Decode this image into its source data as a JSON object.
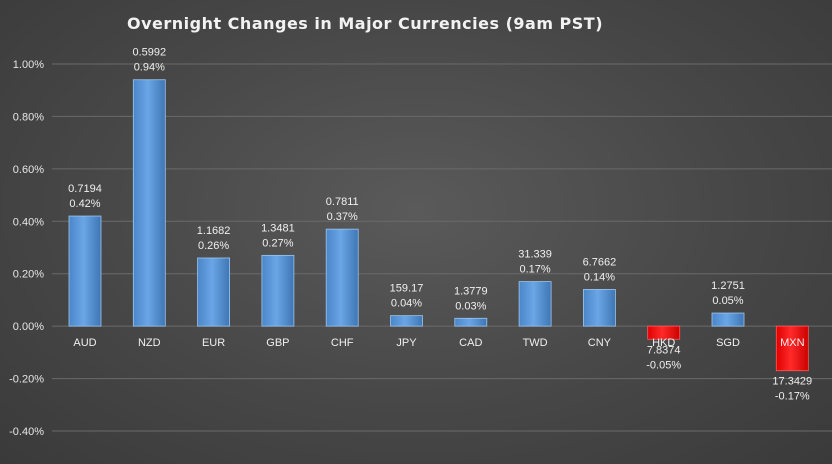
{
  "chart_data": {
    "type": "bar",
    "title": "Overnight Changes in Major Currencies (9am PST)",
    "xlabel": "",
    "ylabel": "",
    "ylim": [
      -0.004,
      0.01
    ],
    "yticks": [
      0.01,
      0.008,
      0.006,
      0.004,
      0.002,
      0.0,
      -0.002,
      -0.004
    ],
    "ytick_labels": [
      "1.00%",
      "0.80%",
      "0.60%",
      "0.40%",
      "0.20%",
      "0.00%",
      "-0.20%",
      "-0.40%"
    ],
    "grid": true,
    "legend": "none",
    "categories": [
      "AUD",
      "NZD",
      "EUR",
      "GBP",
      "CHF",
      "JPY",
      "CAD",
      "TWD",
      "CNY",
      "HKD",
      "SGD",
      "MXN"
    ],
    "values": [
      0.0042,
      0.0094,
      0.0026,
      0.0027,
      0.0037,
      0.0004,
      0.0003,
      0.0017,
      0.0014,
      -0.0005,
      0.0005,
      -0.0017
    ],
    "rates": [
      "0.7194",
      "0.5992",
      "1.1682",
      "1.3481",
      "0.7811",
      "159.17",
      "1.3779",
      "31.339",
      "6.7662",
      "7.8374",
      "1.2751",
      "17.3429"
    ],
    "change_labels": [
      "0.42%",
      "0.94%",
      "0.26%",
      "0.27%",
      "0.37%",
      "0.04%",
      "0.03%",
      "0.17%",
      "0.14%",
      "-0.05%",
      "0.05%",
      "-0.17%"
    ],
    "colors": {
      "positive": "#5b9bd5",
      "negative": "#ff0000",
      "grid": "#6a6a6a",
      "text": "#f0f0f0"
    }
  }
}
